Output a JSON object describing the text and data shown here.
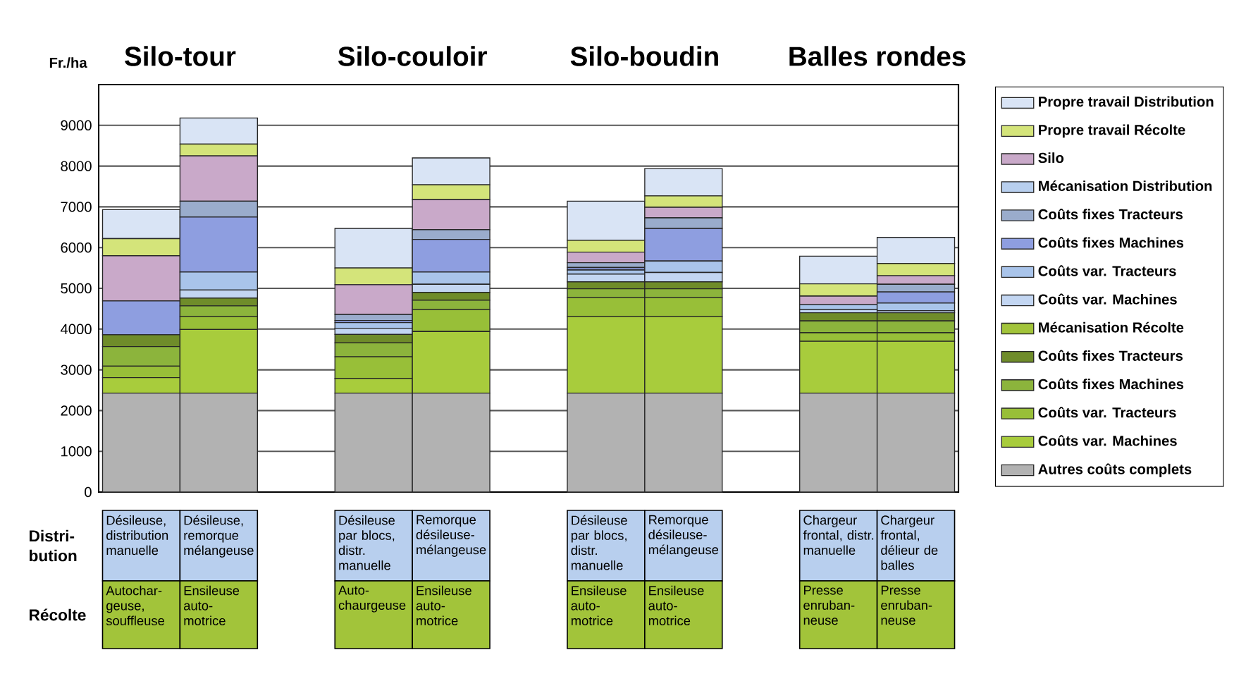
{
  "chart_data": {
    "type": "bar",
    "stacked": true,
    "ylabel": "Fr./ha",
    "categories": [
      null,
      null,
      null,
      null,
      null,
      null,
      null,
      null
    ],
    "ylim": [
      0,
      10000
    ],
    "yticks": [
      0,
      1000,
      2000,
      3000,
      4000,
      5000,
      6000,
      7000,
      8000,
      9000
    ],
    "grid": "y",
    "legend": "right",
    "tick_labels": "y",
    "series": [
      {
        "name": "Autres coûts complets",
        "color": "#b2b2b2",
        "values": [
          2430,
          2430,
          2430,
          2430,
          2430,
          2430,
          2430,
          2430
        ]
      },
      {
        "name": "Coûts var. Machines",
        "color": "#a8cc3c",
        "values": [
          380,
          1560,
          360,
          1510,
          1880,
          1880,
          1270,
          1270
        ]
      },
      {
        "name": "Coûts var. Tracteurs",
        "color": "#98bf38",
        "values": [
          280,
          320,
          530,
          540,
          460,
          460,
          210,
          210
        ]
      },
      {
        "name": "Coûts fixes Machines",
        "color": "#8cb43c",
        "values": [
          480,
          260,
          340,
          230,
          220,
          220,
          290,
          290
        ]
      },
      {
        "name": "Coûts fixes Tracteurs",
        "color": "#6f8c2a",
        "values": [
          290,
          190,
          210,
          190,
          170,
          170,
          200,
          200
        ]
      },
      {
        "name": "Mécanisation Récolte",
        "color": "#a2c43a",
        "values": [
          null,
          null,
          null,
          null,
          null,
          null,
          null,
          null
        ]
      },
      {
        "name": "Coûts var. Machines",
        "color": "#c3d6f2",
        "values": [
          null,
          200,
          150,
          200,
          190,
          230,
          80,
          50
        ]
      },
      {
        "name": "Coûts var. Tracteurs",
        "color": "#a9c4ea",
        "values": [
          null,
          440,
          140,
          300,
          100,
          280,
          120,
          190
        ]
      },
      {
        "name": "Coûts fixes Machines",
        "color": "#8e9ee0",
        "values": [
          830,
          1350,
          50,
          800,
          60,
          800,
          null,
          270
        ]
      },
      {
        "name": "Coûts fixes Tracteurs",
        "color": "#9aaccc",
        "values": [
          null,
          390,
          150,
          240,
          120,
          260,
          null,
          190
        ]
      },
      {
        "name": "Mécanisation Distribution",
        "color": "#b8cfee",
        "values": [
          null,
          null,
          null,
          null,
          null,
          null,
          null,
          null
        ]
      },
      {
        "name": "Silo",
        "color": "#c9a9c9",
        "values": [
          1110,
          1110,
          730,
          740,
          260,
          260,
          210,
          210
        ]
      },
      {
        "name": "Propre travail Récolte",
        "color": "#d4e47a",
        "values": [
          420,
          290,
          410,
          360,
          290,
          280,
          300,
          300
        ]
      },
      {
        "name": "Propre travail Distribution",
        "color": "#d9e4f5",
        "values": [
          710,
          640,
          970,
          660,
          960,
          670,
          680,
          640
        ]
      }
    ],
    "annotations": [
      "Silo-tour",
      "Silo-couloir",
      "Silo-boudin",
      "Balles rondes",
      "Distri-bution",
      "Récolte",
      "Désileuse, distribution manuelle",
      "Désileuse, remorque mélangeuse",
      "Désileuse par blocs, distr. manuelle",
      "Remorque désileuse-mélangeuse",
      "Désileuse par blocs, distr. manuelle",
      "Remorque désileuse-mélangeuse",
      "Chargeur frontal, distr. manuelle",
      "Chargeur frontal, délieur de balles",
      "Autochar-geuse, souffleuse",
      "Ensileuse auto-motrice",
      "Auto-chaurgeuse",
      "Ensileuse auto-motrice",
      "Ensileuse auto-motrice",
      "Ensileuse auto-motrice",
      "Presse enruban-neuse",
      "Presse enruban-neuse"
    ]
  }
}
